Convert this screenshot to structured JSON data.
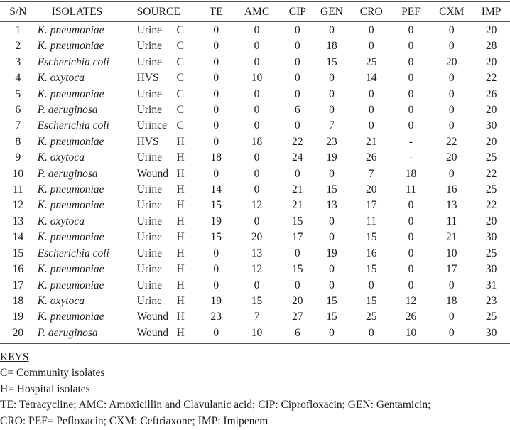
{
  "table": {
    "headers": [
      "S/N",
      "ISOLATES",
      "SOURCE",
      "TE",
      "AMC",
      "CIP",
      "GEN",
      "CRO",
      "PEF",
      "CXM",
      "IMP"
    ],
    "rows": [
      {
        "sn": "1",
        "isolate": "K. pneumoniae",
        "source": "Urine",
        "type": "C",
        "TE": "0",
        "AMC": "0",
        "CIP": "0",
        "GEN": "0",
        "CRO": "0",
        "PEF": "0",
        "CXM": "0",
        "IMP": "20"
      },
      {
        "sn": "2",
        "isolate": "K. pneumoniae",
        "source": "Urine",
        "type": "C",
        "TE": "0",
        "AMC": "0",
        "CIP": "0",
        "GEN": "18",
        "CRO": "0",
        "PEF": "0",
        "CXM": "0",
        "IMP": "28"
      },
      {
        "sn": "3",
        "isolate": "Escherichia coli",
        "source": "Urine",
        "type": "C",
        "TE": "0",
        "AMC": "0",
        "CIP": "0",
        "GEN": "15",
        "CRO": "25",
        "PEF": "0",
        "CXM": "20",
        "IMP": "20"
      },
      {
        "sn": "4",
        "isolate": "K. oxytoca",
        "source": "HVS",
        "type": "C",
        "TE": "0",
        "AMC": "10",
        "CIP": "0",
        "GEN": "0",
        "CRO": "14",
        "PEF": "0",
        "CXM": "0",
        "IMP": "22"
      },
      {
        "sn": "5",
        "isolate": "K. pneumoniae",
        "source": "Urine",
        "type": "C",
        "TE": "0",
        "AMC": "0",
        "CIP": "0",
        "GEN": "0",
        "CRO": "0",
        "PEF": "0",
        "CXM": "0",
        "IMP": "26"
      },
      {
        "sn": "6",
        "isolate": "P. aeruginosa",
        "source": "Urine",
        "type": "C",
        "TE": "0",
        "AMC": "0",
        "CIP": "6",
        "GEN": "0",
        "CRO": "0",
        "PEF": "0",
        "CXM": "0",
        "IMP": "20"
      },
      {
        "sn": "7",
        "isolate": "Escherichia coli",
        "source": "Urince",
        "type": "C",
        "TE": "0",
        "AMC": "0",
        "CIP": "0",
        "GEN": "7",
        "CRO": "0",
        "PEF": "0",
        "CXM": "0",
        "IMP": "30"
      },
      {
        "sn": "8",
        "isolate": "K. pneumoniae",
        "source": "HVS",
        "type": "H",
        "TE": "0",
        "AMC": "18",
        "CIP": "22",
        "GEN": "23",
        "CRO": "21",
        "PEF": "-",
        "CXM": "22",
        "IMP": "20"
      },
      {
        "sn": "9",
        "isolate": "K. oxytoca",
        "source": "Urine",
        "type": "H",
        "TE": "18",
        "AMC": "0",
        "CIP": "24",
        "GEN": "19",
        "CRO": "26",
        "PEF": "-",
        "CXM": "20",
        "IMP": "25"
      },
      {
        "sn": "10",
        "isolate": "P. aeruginosa",
        "source": "Wound",
        "type": "H",
        "TE": "0",
        "AMC": "0",
        "CIP": "0",
        "GEN": "0",
        "CRO": "7",
        "PEF": "18",
        "CXM": "0",
        "IMP": "22"
      },
      {
        "sn": "11",
        "isolate": "K. pneumoniae",
        "source": "Urine",
        "type": "H",
        "TE": "14",
        "AMC": "0",
        "CIP": "21",
        "GEN": "15",
        "CRO": "20",
        "PEF": "11",
        "CXM": "16",
        "IMP": "25"
      },
      {
        "sn": "12",
        "isolate": "K. pneumoniae",
        "source": "Urine",
        "type": "H",
        "TE": "15",
        "AMC": "12",
        "CIP": "21",
        "GEN": "13",
        "CRO": "17",
        "PEF": "0",
        "CXM": "13",
        "IMP": "22"
      },
      {
        "sn": "13",
        "isolate": "K. oxytoca",
        "source": "Urine",
        "type": "H",
        "TE": "19",
        "AMC": "0",
        "CIP": "15",
        "GEN": "0",
        "CRO": "11",
        "PEF": "0",
        "CXM": "11",
        "IMP": "20"
      },
      {
        "sn": "14",
        "isolate": "K. pneumoniae",
        "source": "Urine",
        "type": "H",
        "TE": "15",
        "AMC": "20",
        "CIP": "17",
        "GEN": "0",
        "CRO": "15",
        "PEF": "0",
        "CXM": "21",
        "IMP": "30"
      },
      {
        "sn": "15",
        "isolate": "Escherichia coli",
        "source": "Urine",
        "type": "H",
        "TE": "0",
        "AMC": "13",
        "CIP": "0",
        "GEN": "19",
        "CRO": "16",
        "PEF": "0",
        "CXM": "10",
        "IMP": "25"
      },
      {
        "sn": "16",
        "isolate": "K. pneumoniae",
        "source": "Urine",
        "type": "H",
        "TE": "0",
        "AMC": "12",
        "CIP": "15",
        "GEN": "0",
        "CRO": "15",
        "PEF": "0",
        "CXM": "17",
        "IMP": "30"
      },
      {
        "sn": "17",
        "isolate": "K. pneumoniae",
        "source": "Urine",
        "type": "H",
        "TE": "0",
        "AMC": "0",
        "CIP": "0",
        "GEN": "0",
        "CRO": "0",
        "PEF": "0",
        "CXM": "0",
        "IMP": "31"
      },
      {
        "sn": "18",
        "isolate": "K. oxytoca",
        "source": "Urine",
        "type": "H",
        "TE": "19",
        "AMC": "15",
        "CIP": "20",
        "GEN": "15",
        "CRO": "15",
        "PEF": "12",
        "CXM": "18",
        "IMP": "23"
      },
      {
        "sn": "19",
        "isolate": "K. pneumoniae",
        "source": "Wound",
        "type": "H",
        "TE": "23",
        "AMC": "7",
        "CIP": "27",
        "GEN": "15",
        "CRO": "25",
        "PEF": "26",
        "CXM": "0",
        "IMP": "25"
      },
      {
        "sn": "20",
        "isolate": "P. aeruginosa",
        "source": "Wound",
        "type": "H",
        "TE": "0",
        "AMC": "10",
        "CIP": "6",
        "GEN": "0",
        "CRO": "0",
        "PEF": "10",
        "CXM": "0",
        "IMP": "30"
      }
    ]
  },
  "keys": {
    "title": "KEYS",
    "lines": [
      "C= Community isolates",
      "H= Hospital isolates",
      "TE: Tetracycline; AMC: Amoxicillin and Clavulanic acid; CIP: Ciprofloxacin; GEN: Gentamicin;",
      "CRO: PEF= Pefloxacin; CXM: Ceftriaxone; IMP: Imipenem"
    ]
  }
}
